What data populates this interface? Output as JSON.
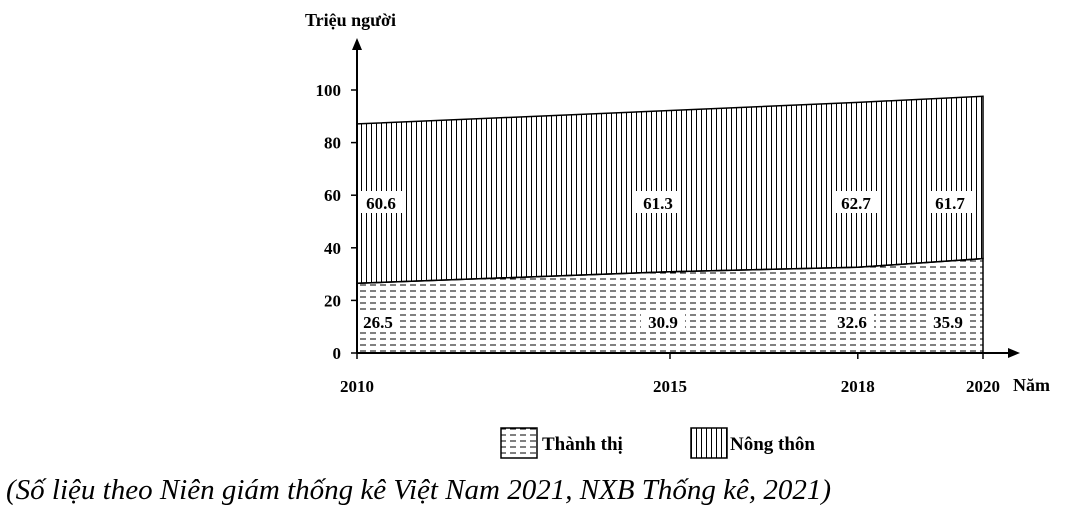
{
  "chart_data": {
    "type": "area",
    "stacked": true,
    "ylabel": "Triệu người",
    "xlabel": "Năm",
    "x": [
      2010,
      2015,
      2018,
      2020
    ],
    "x_tick_labels": [
      "2010",
      "2015",
      "2018",
      "2020"
    ],
    "ylim": [
      0,
      100
    ],
    "y_ticks": [
      0,
      20,
      40,
      60,
      80,
      100
    ],
    "y_tick_labels": [
      "0",
      "20",
      "40",
      "60",
      "80",
      "100"
    ],
    "grid": false,
    "legend_position": "bottom",
    "series": [
      {
        "name": "Thành thị",
        "pattern": "dashed-horizontal",
        "values": [
          26.5,
          30.9,
          32.6,
          35.9
        ],
        "data_labels": [
          "26.5",
          "30.9",
          "32.6",
          "35.9"
        ]
      },
      {
        "name": "Nông thôn",
        "pattern": "vertical-lines",
        "values": [
          60.6,
          61.3,
          62.7,
          61.7
        ],
        "data_labels": [
          "60.6",
          "61.3",
          "62.7",
          "61.7"
        ]
      }
    ]
  },
  "source_note": "(Số liệu theo Niên giám thống kê Việt Nam 2021, NXB Thống kê, 2021)",
  "colors": {
    "ink": "#000000",
    "background": "#ffffff"
  }
}
